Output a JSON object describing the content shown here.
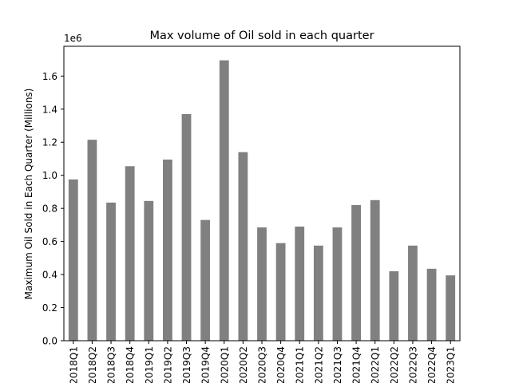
{
  "chart_data": {
    "type": "bar",
    "title": "Max volume of Oil sold in each quarter",
    "xlabel": "",
    "ylabel": "Maximum Oil Sold in Each Quarter (Millions)",
    "offset_label": "1e6",
    "ylim": [
      0,
      1780000
    ],
    "yticks": [
      0,
      200000,
      400000,
      600000,
      800000,
      1000000,
      1200000,
      1400000,
      1600000
    ],
    "ytick_labels": [
      "0.0",
      "0.2",
      "0.4",
      "0.6",
      "0.8",
      "1.0",
      "1.2",
      "1.4",
      "1.6"
    ],
    "bar_color": "#808080",
    "grid": false,
    "legend": "none",
    "categories": [
      "2018Q1",
      "2018Q2",
      "2018Q3",
      "2018Q4",
      "2019Q1",
      "2019Q2",
      "2019Q3",
      "2019Q4",
      "2020Q1",
      "2020Q2",
      "2020Q3",
      "2020Q4",
      "2021Q1",
      "2021Q2",
      "2021Q3",
      "2021Q4",
      "2022Q1",
      "2022Q2",
      "2022Q3",
      "2022Q4",
      "2023Q1"
    ],
    "values": [
      975000,
      1215000,
      835000,
      1055000,
      845000,
      1095000,
      1370000,
      730000,
      1695000,
      1140000,
      685000,
      590000,
      690000,
      575000,
      685000,
      820000,
      850000,
      420000,
      575000,
      435000,
      395000
    ]
  }
}
